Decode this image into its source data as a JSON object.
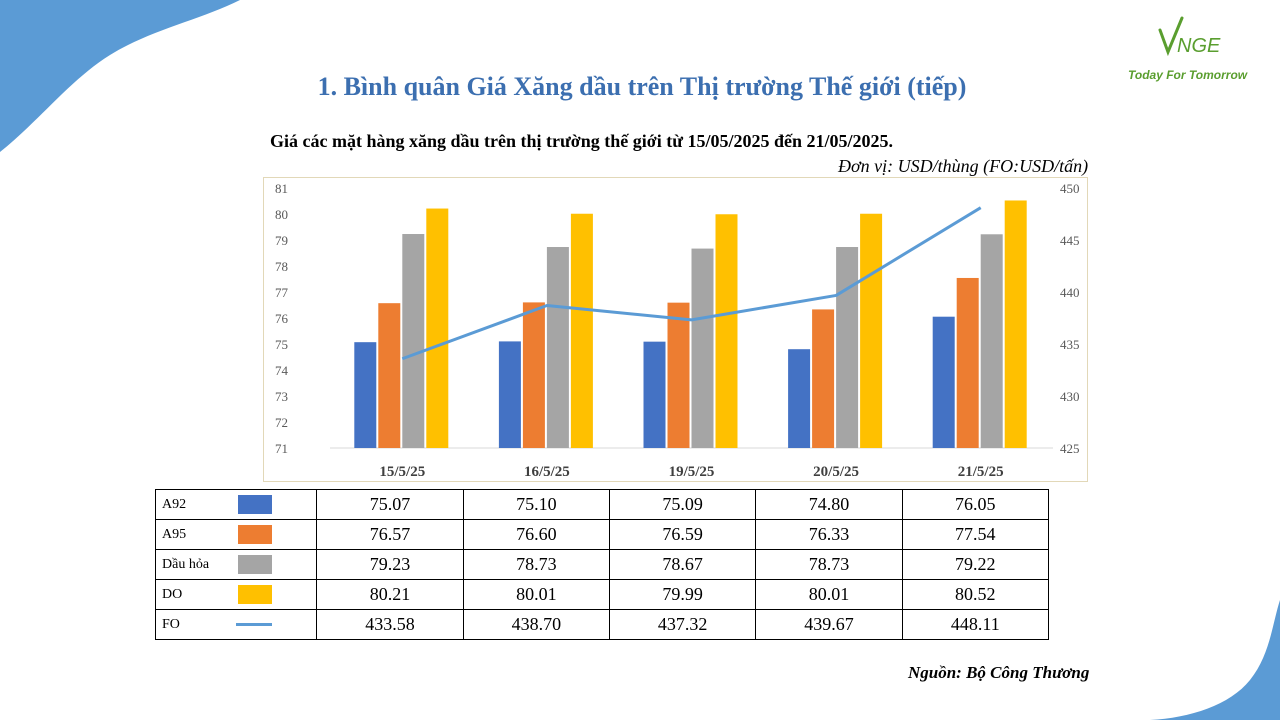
{
  "logo": {
    "name": "VNGE",
    "tagline": "Today For Tomorrow"
  },
  "page_title": "1. Bình quân Giá Xăng dầu trên Thị trường Thế giới (tiếp)",
  "chart_title": "Giá các mặt hàng xăng dầu trên thị trường thế giới từ 15/05/2025 đến 21/05/2025.",
  "unit": "Đơn vị:  USD/thùng (FO:USD/tấn)",
  "source": "Nguồn: Bộ Công Thương",
  "colors": {
    "A92": "#4472c4",
    "A95": "#ed7d31",
    "Dau_hoa": "#a5a5a5",
    "DO": "#ffc000",
    "FO": "#5b9bd5",
    "title": "#3c6fb0",
    "background_shape": "#5b9bd5"
  },
  "chart_data": {
    "type": "bar",
    "categories": [
      "15/5/25",
      "16/5/25",
      "19/5/25",
      "20/5/25",
      "21/5/25"
    ],
    "series": [
      {
        "name": "A92",
        "type": "bar",
        "axis": "left",
        "values": [
          75.07,
          75.1,
          75.09,
          74.8,
          76.05
        ]
      },
      {
        "name": "A95",
        "type": "bar",
        "axis": "left",
        "values": [
          76.57,
          76.6,
          76.59,
          76.33,
          77.54
        ]
      },
      {
        "name": "Dầu hỏa",
        "type": "bar",
        "axis": "left",
        "values": [
          79.23,
          78.73,
          78.67,
          78.73,
          79.22
        ]
      },
      {
        "name": "DO",
        "type": "bar",
        "axis": "left",
        "values": [
          80.21,
          80.01,
          79.99,
          80.01,
          80.52
        ]
      },
      {
        "name": "FO",
        "type": "line",
        "axis": "right",
        "values": [
          433.58,
          438.7,
          437.32,
          439.67,
          448.11
        ]
      }
    ],
    "y_left": {
      "min": 71,
      "max": 81,
      "ticks": [
        "71",
        "72",
        "73",
        "74",
        "75",
        "76",
        "77",
        "78",
        "79",
        "80",
        "81"
      ]
    },
    "y_right": {
      "min": 425,
      "max": 450,
      "ticks": [
        "425",
        "430",
        "435",
        "440",
        "445",
        "450"
      ]
    },
    "grid": false,
    "legend": "data-table below chart"
  },
  "table": {
    "rows": [
      {
        "label": "A92",
        "values": [
          "75.07",
          "75.10",
          "75.09",
          "74.80",
          "76.05"
        ]
      },
      {
        "label": "A95",
        "values": [
          "76.57",
          "76.60",
          "76.59",
          "76.33",
          "77.54"
        ]
      },
      {
        "label": "Dầu hỏa",
        "values": [
          "79.23",
          "78.73",
          "78.67",
          "78.73",
          "79.22"
        ]
      },
      {
        "label": "DO",
        "values": [
          "80.21",
          "80.01",
          "79.99",
          "80.01",
          "80.52"
        ]
      },
      {
        "label": "FO",
        "values": [
          "433.58",
          "438.70",
          "437.32",
          "439.67",
          "448.11"
        ]
      }
    ]
  }
}
